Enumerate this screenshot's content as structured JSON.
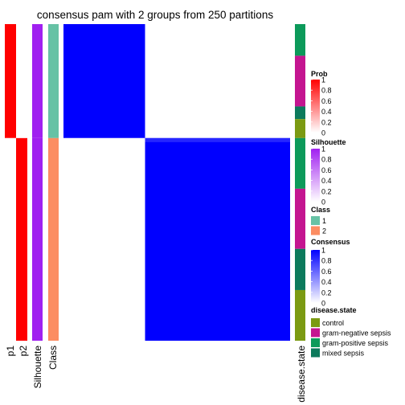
{
  "chart_data": {
    "type": "heatmap",
    "title": "consensus pam with 2 groups from 250 partitions",
    "samples": 100,
    "class_sizes": [
      36,
      64
    ],
    "tracks": {
      "p1": [
        1,
        0
      ],
      "p2": [
        0,
        1
      ],
      "silhouette": [
        1,
        1
      ]
    },
    "consensus_blocks": [
      [
        1,
        0
      ],
      [
        0,
        1
      ]
    ],
    "disease_state_runs": [
      {
        "level": "gram-positive sepsis",
        "count": 10
      },
      {
        "level": "gram-negative sepsis",
        "count": 16
      },
      {
        "level": "mixed sepsis",
        "count": 4
      },
      {
        "level": "control",
        "count": 6
      },
      {
        "level": "gram-positive sepsis",
        "count": 16
      },
      {
        "level": "gram-negative sepsis",
        "count": 19
      },
      {
        "level": "mixed sepsis",
        "count": 13
      },
      {
        "level": "control",
        "count": 16
      }
    ],
    "column_labels": [
      "p1",
      "p2",
      "Silhouette",
      "Class"
    ],
    "disease_state_label": "disease.state",
    "legends": {
      "prob": {
        "title": "Prob",
        "ticks": [
          "1",
          "0.8",
          "0.6",
          "0.4",
          "0.2",
          "0"
        ],
        "color_high": "#ff0000",
        "color_low": "#ffffff"
      },
      "silhouette": {
        "title": "Silhouette",
        "ticks": [
          "1",
          "0.8",
          "0.6",
          "0.4",
          "0.2",
          "0"
        ],
        "color_high": "#a020f0",
        "color_low": "#ffffff"
      },
      "class": {
        "title": "Class",
        "items": [
          {
            "label": "1",
            "color": "#66c2a5"
          },
          {
            "label": "2",
            "color": "#fc8d62"
          }
        ]
      },
      "consensus": {
        "title": "Consensus",
        "ticks": [
          "1",
          "0.8",
          "0.6",
          "0.4",
          "0.2",
          "0"
        ],
        "color_high": "#0000ff",
        "color_low": "#ffffff"
      },
      "disease_state": {
        "title": "disease.state",
        "items": [
          {
            "label": "control",
            "color": "#7b9a12"
          },
          {
            "label": "gram-negative sepsis",
            "color": "#c41590"
          },
          {
            "label": "gram-positive sepsis",
            "color": "#0c9a5a"
          },
          {
            "label": "mixed sepsis",
            "color": "#0c7a5c"
          }
        ]
      }
    },
    "colors": {
      "prob": "#ff0000",
      "silhouette": "#a020f0",
      "class_1": "#66c2a5",
      "class_2": "#fc8d62",
      "consensus": "#0000ff",
      "consensus_top_edge": "#2626ff"
    }
  }
}
